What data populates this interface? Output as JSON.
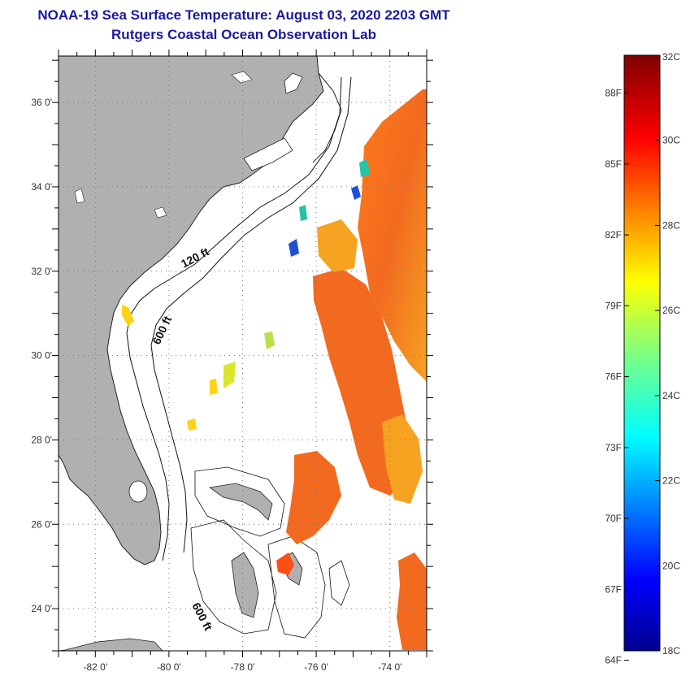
{
  "title": {
    "line1": "NOAA-19 Sea Surface Temperature:  August 03, 2020 2203 GMT",
    "line2": "Rutgers Coastal Ocean Observation Lab"
  },
  "map": {
    "lat_labels": [
      "36 0'",
      "34 0'",
      "32 0'",
      "30 0'",
      "28 0'",
      "26 0'",
      "24 0'"
    ],
    "lat_values": [
      36,
      34,
      32,
      30,
      28,
      26,
      24
    ],
    "lon_labels": [
      "-82 0'",
      "-80 0'",
      "-78 0'",
      "-76 0'",
      "-74 0'"
    ],
    "lon_values": [
      -82,
      -80,
      -78,
      -76,
      -74
    ],
    "lat_range": [
      23,
      37.1
    ],
    "lon_range": [
      -83,
      -73
    ],
    "contour_labels": [
      "120 ft",
      "600 ft",
      "600 ft"
    ],
    "colors": {
      "land": "#b0b0b0",
      "sst_warm": "#f26a1f",
      "sst_mid": "#f5a321",
      "sst_cool": "#ffd21a"
    }
  },
  "colorbar": {
    "celsius_labels": [
      "32C",
      "30C",
      "28C",
      "26C",
      "24C",
      "22C",
      "20C",
      "18C"
    ],
    "celsius_values": [
      32,
      30,
      28,
      26,
      24,
      22,
      20,
      18
    ],
    "fahrenheit_labels": [
      "88F",
      "85F",
      "82F",
      "79F",
      "76F",
      "73F",
      "70F",
      "67F",
      "64F"
    ],
    "fahrenheit_values": [
      88,
      85,
      82,
      79,
      76,
      73,
      70,
      67,
      64
    ],
    "range_c": [
      18,
      32
    ]
  }
}
